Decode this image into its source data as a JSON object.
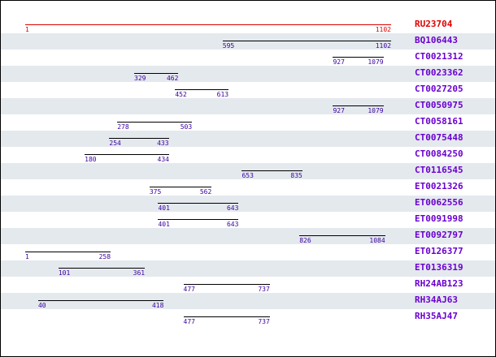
{
  "ruler": {
    "min": 1,
    "max": 1102
  },
  "colors": {
    "reference": "#e00000",
    "hit_label": "#6a00d0",
    "hit_bar": "#000000",
    "hit_num": "#3a00a0",
    "stripe": "#e4e9ee"
  },
  "rows": [
    {
      "id": "RU23704",
      "start": "1",
      "end": "1102",
      "reference": true
    },
    {
      "id": "BQ106443",
      "start": "595",
      "end": "1102"
    },
    {
      "id": "CT0021312",
      "start": "927",
      "end": "1079"
    },
    {
      "id": "CT0023362",
      "start": "329",
      "end": "462"
    },
    {
      "id": "CT0027205",
      "start": "452",
      "end": "613"
    },
    {
      "id": "CT0050975",
      "start": "927",
      "end": "1079"
    },
    {
      "id": "CT0058161",
      "start": "278",
      "end": "503"
    },
    {
      "id": "CT0075448",
      "start": "254",
      "end": "433"
    },
    {
      "id": "CT0084250",
      "start": "180",
      "end": "434"
    },
    {
      "id": "CT0116545",
      "start": "653",
      "end": "835"
    },
    {
      "id": "ET0021326",
      "start": "375",
      "end": "562"
    },
    {
      "id": "ET0062556",
      "start": "401",
      "end": "643"
    },
    {
      "id": "ET0091998",
      "start": "401",
      "end": "643"
    },
    {
      "id": "ET0092797",
      "start": "826",
      "end": "1084"
    },
    {
      "id": "ET0126377",
      "start": "1",
      "end": "258"
    },
    {
      "id": "ET0136319",
      "start": "101",
      "end": "361"
    },
    {
      "id": "RH24AB123",
      "start": "477",
      "end": "737"
    },
    {
      "id": "RH34AJ63",
      "start": "40",
      "end": "418"
    },
    {
      "id": "RH35AJ47",
      "start": "477",
      "end": "737"
    }
  ]
}
